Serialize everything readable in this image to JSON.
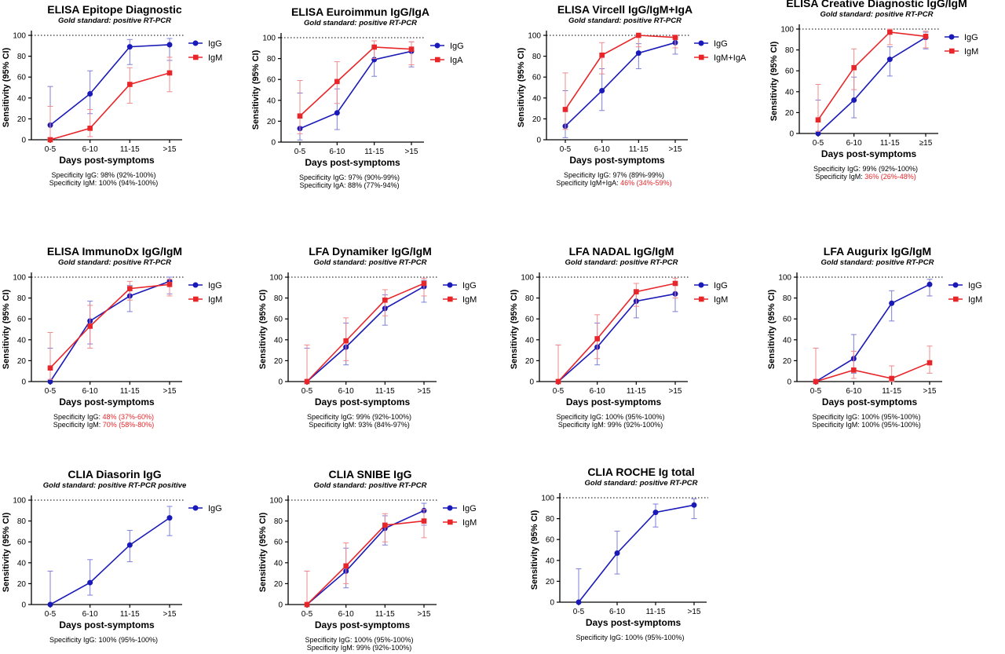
{
  "colors": {
    "IgG": "#1a1ab8",
    "other": "#e8262a",
    "red_text": "#e8262a",
    "text": "#000000"
  },
  "common": {
    "xlabel": "Days post-symptoms",
    "ylabel": "Sensitivity (95% CI)",
    "categories": [
      "0-5",
      "6-10",
      "11-15",
      ">15"
    ],
    "yticks": [
      "0",
      "20",
      "40",
      "60",
      "80",
      "100"
    ]
  },
  "chart_data": [
    {
      "type": "line",
      "title": "ELISA Epitope Diagnostic",
      "subtitle": "Gold standard: positive RT-PCR",
      "categories": [
        "0-5",
        "6-10",
        "11-15",
        ">15"
      ],
      "ylim": [
        0,
        100
      ],
      "reference_line": 100,
      "legend": "right",
      "series": [
        {
          "name": "IgG",
          "color": "#1a1ab8",
          "marker": "circle",
          "values": [
            14,
            44,
            89,
            91
          ],
          "ci": [
            [
              2,
              51
            ],
            [
              25,
              66
            ],
            [
              72,
              96
            ],
            [
              76,
              97
            ]
          ]
        },
        {
          "name": "IgM",
          "color": "#e8262a",
          "marker": "square",
          "values": [
            0,
            11,
            53,
            64
          ],
          "ci": [
            [
              0,
              32
            ],
            [
              3,
              29
            ],
            [
              35,
              69
            ],
            [
              46,
              79
            ]
          ]
        }
      ],
      "specificity": [
        {
          "label": "Specificity IgG: ",
          "value": "98% (92%-100%)",
          "highlight": false
        },
        {
          "label": "Specificity IgM: ",
          "value": "100% (94%-100%)",
          "highlight": false
        }
      ]
    },
    {
      "type": "line",
      "title": "ELISA Euroimmun IgG/IgA",
      "subtitle": "Gold standard: positive RT-PCR",
      "categories": [
        "0-5",
        "6-10",
        "11-15",
        ">15"
      ],
      "ylim": [
        0,
        100
      ],
      "reference_line": 100,
      "legend": "right",
      "series": [
        {
          "name": "IgG",
          "color": "#1a1ab8",
          "marker": "circle",
          "values": [
            13,
            28,
            79,
            87
          ],
          "ci": [
            [
              2,
              47
            ],
            [
              12,
              51
            ],
            [
              63,
              91
            ],
            [
              72,
              96
            ]
          ]
        },
        {
          "name": "IgA",
          "color": "#e8262a",
          "marker": "square",
          "values": [
            25,
            58,
            91,
            89
          ],
          "ci": [
            [
              8,
              59
            ],
            [
              37,
              77
            ],
            [
              80,
              97
            ],
            [
              74,
              96
            ]
          ]
        }
      ],
      "specificity": [
        {
          "label": "Specificity IgG: ",
          "value": "97% (90%-99%)",
          "highlight": false
        },
        {
          "label": "Specificity IgA: ",
          "value": "88% (77%-94%)",
          "highlight": false
        }
      ]
    },
    {
      "type": "line",
      "title": "ELISA Vircell IgG/IgM+IgA",
      "subtitle": "Gold standard: positive RT-PCR",
      "categories": [
        "0-5",
        "6-10",
        "11-15",
        ">15"
      ],
      "ylim": [
        0,
        100
      ],
      "reference_line": 100,
      "legend": "right",
      "series": [
        {
          "name": "IgG",
          "color": "#1a1ab8",
          "marker": "circle",
          "values": [
            13,
            47,
            83,
            93
          ],
          "ci": [
            [
              2,
              47
            ],
            [
              28,
              68
            ],
            [
              68,
              92
            ],
            [
              82,
              98
            ]
          ]
        },
        {
          "name": "IgM+IgA",
          "color": "#e8262a",
          "marker": "square",
          "values": [
            29,
            81,
            100,
            98
          ],
          "ci": [
            [
              10,
              64
            ],
            [
              63,
              93
            ],
            [
              89,
              100
            ],
            [
              88,
              100
            ]
          ]
        }
      ],
      "specificity": [
        {
          "label": "Specificity IgG: ",
          "value": "97% (89%-99%)",
          "highlight": false
        },
        {
          "label": "Specificity IgM+IgA: ",
          "value": "46% (34%-59%)",
          "highlight": true
        }
      ]
    },
    {
      "type": "line",
      "title": "ELISA Creative Diagnostic IgG/IgM",
      "subtitle": "Gold standard: positive RT-PCR",
      "categories": [
        "0-5",
        "6-10",
        "11-15",
        "≥15"
      ],
      "ylim": [
        0,
        100
      ],
      "reference_line": 100,
      "legend": "right",
      "series": [
        {
          "name": "IgG",
          "color": "#1a1ab8",
          "marker": "circle",
          "values": [
            0,
            32,
            71,
            92
          ],
          "ci": [
            [
              0,
              32
            ],
            [
              15,
              54
            ],
            [
              55,
              83
            ],
            [
              81,
              97
            ]
          ]
        },
        {
          "name": "IgM",
          "color": "#e8262a",
          "marker": "square",
          "values": [
            13,
            63,
            97,
            93
          ],
          "ci": [
            [
              2,
              47
            ],
            [
              42,
              81
            ],
            [
              85,
              100
            ],
            [
              82,
              98
            ]
          ]
        }
      ],
      "specificity": [
        {
          "label": "Specificity IgG: ",
          "value": "99% (92%-100%)",
          "highlight": false
        },
        {
          "label": "Specificity IgM: ",
          "value": "36% (26%-48%)",
          "highlight": true
        }
      ]
    },
    {
      "type": "line",
      "title": "ELISA ImmunoDx IgG/IgM",
      "subtitle": "Gold standard: positive RT-PCR",
      "categories": [
        "0-5",
        "6-10",
        "11-15",
        ">15"
      ],
      "ylim": [
        0,
        100
      ],
      "reference_line": 100,
      "legend": "right",
      "series": [
        {
          "name": "IgG",
          "color": "#1a1ab8",
          "marker": "circle",
          "values": [
            0,
            58,
            82,
            96
          ],
          "ci": [
            [
              0,
              32
            ],
            [
              36,
              77
            ],
            [
              67,
              92
            ],
            [
              84,
              100
            ]
          ]
        },
        {
          "name": "IgM",
          "color": "#e8262a",
          "marker": "square",
          "values": [
            13,
            53,
            89,
            93
          ],
          "ci": [
            [
              2,
              47
            ],
            [
              32,
              73
            ],
            [
              78,
              96
            ],
            [
              82,
              98
            ]
          ]
        }
      ],
      "specificity": [
        {
          "label": "Specificity IgG: ",
          "value": "48% (37%-60%)",
          "highlight": true
        },
        {
          "label": "Specificity IgM: ",
          "value": "70% (58%-80%)",
          "highlight": true
        }
      ]
    },
    {
      "type": "line",
      "title": "LFA Dynamiker IgG/IgM",
      "subtitle": "Gold standard: positive RT-PCR",
      "categories": [
        "0-5",
        "6-10",
        "11-15",
        ">15"
      ],
      "ylim": [
        0,
        100
      ],
      "reference_line": 100,
      "legend": "right",
      "series": [
        {
          "name": "IgG",
          "color": "#1a1ab8",
          "marker": "circle",
          "values": [
            0,
            33,
            70,
            91
          ],
          "ci": [
            [
              0,
              32
            ],
            [
              16,
              56
            ],
            [
              54,
              83
            ],
            [
              76,
              97
            ]
          ]
        },
        {
          "name": "IgM",
          "color": "#e8262a",
          "marker": "square",
          "values": [
            0,
            39,
            78,
            94
          ],
          "ci": [
            [
              0,
              35
            ],
            [
              20,
              61
            ],
            [
              63,
              88
            ],
            [
              82,
              99
            ]
          ]
        }
      ],
      "specificity": [
        {
          "label": "Specificity IgG: ",
          "value": "99% (92%-100%)",
          "highlight": false
        },
        {
          "label": "Specificity IgM: ",
          "value": "93% (84%-97%)",
          "highlight": false
        }
      ]
    },
    {
      "type": "line",
      "title": "LFA NADAL IgG/IgM",
      "subtitle": "Gold standard: positive RT-PCR",
      "categories": [
        "0-5",
        "6-10",
        "11-15",
        ">15"
      ],
      "ylim": [
        0,
        100
      ],
      "reference_line": 100,
      "legend": "right",
      "series": [
        {
          "name": "IgG",
          "color": "#1a1ab8",
          "marker": "circle",
          "values": [
            0,
            33,
            77,
            84
          ],
          "ci": [
            [
              0,
              35
            ],
            [
              16,
              56
            ],
            [
              61,
              88
            ],
            [
              67,
              93
            ]
          ]
        },
        {
          "name": "IgM",
          "color": "#e8262a",
          "marker": "square",
          "values": [
            0,
            41,
            86,
            94
          ],
          "ci": [
            [
              0,
              35
            ],
            [
              22,
              64
            ],
            [
              72,
              94
            ],
            [
              80,
              99
            ]
          ]
        }
      ],
      "specificity": [
        {
          "label": "Specificity IgG: ",
          "value": "100% (95%-100%)",
          "highlight": false
        },
        {
          "label": "Specificity IgM: ",
          "value": "99% (92%-100%)",
          "highlight": false
        }
      ]
    },
    {
      "type": "line",
      "title": "LFA Augurix IgG/IgM",
      "subtitle": "Gold standard: positive RT-PCR",
      "categories": [
        "0-5",
        "6-10",
        "11-15",
        ">15"
      ],
      "ylim": [
        0,
        100
      ],
      "reference_line": 100,
      "legend": "right",
      "series": [
        {
          "name": "IgG",
          "color": "#1a1ab8",
          "marker": "circle",
          "values": [
            0,
            22,
            75,
            93
          ],
          "ci": [
            [
              0,
              32
            ],
            [
              8,
              45
            ],
            [
              58,
              87
            ],
            [
              82,
              98
            ]
          ]
        },
        {
          "name": "IgM",
          "color": "#e8262a",
          "marker": "square",
          "values": [
            0,
            11,
            3,
            18
          ],
          "ci": [
            [
              0,
              32
            ],
            [
              3,
              29
            ],
            [
              0,
              15
            ],
            [
              8,
              34
            ]
          ]
        }
      ],
      "specificity": [
        {
          "label": "Specificity IgG: ",
          "value": "100% (95%-100%)",
          "highlight": false
        },
        {
          "label": "Specificity IgM: ",
          "value": "100% (95%-100%)",
          "highlight": false
        }
      ]
    },
    {
      "type": "line",
      "title": "CLIA Diasorin IgG",
      "subtitle": "Gold standard: positive RT-PCR positive",
      "categories": [
        "0-5",
        "6-10",
        "11-15",
        ">15"
      ],
      "ylim": [
        0,
        100
      ],
      "reference_line": 100,
      "legend": "right",
      "series": [
        {
          "name": "IgG",
          "color": "#1a1ab8",
          "marker": "circle",
          "values": [
            0,
            21,
            57,
            83
          ],
          "ci": [
            [
              0,
              32
            ],
            [
              9,
              43
            ],
            [
              41,
              71
            ],
            [
              66,
              94
            ]
          ]
        }
      ],
      "specificity": [
        {
          "label": "Specificity IgG: ",
          "value": "100% (95%-100%)",
          "highlight": false
        }
      ]
    },
    {
      "type": "line",
      "title": "CLIA SNIBE IgG",
      "subtitle": "Gold standard: positive RT-PCR",
      "categories": [
        "0-5",
        "6-10",
        "11-15",
        ">15"
      ],
      "ylim": [
        0,
        100
      ],
      "reference_line": 100,
      "legend": "right",
      "series": [
        {
          "name": "IgG",
          "color": "#1a1ab8",
          "marker": "circle",
          "values": [
            0,
            32,
            73,
            90
          ],
          "ci": [
            [
              0,
              32
            ],
            [
              16,
              54
            ],
            [
              57,
              85
            ],
            [
              76,
              97
            ]
          ]
        },
        {
          "name": "IgM",
          "color": "#e8262a",
          "marker": "square",
          "values": [
            0,
            37,
            76,
            80
          ],
          "ci": [
            [
              0,
              32
            ],
            [
              20,
              59
            ],
            [
              60,
              87
            ],
            [
              64,
              91
            ]
          ]
        }
      ],
      "specificity": [
        {
          "label": "Specificity IgG: ",
          "value": "100% (95%-100%)",
          "highlight": false
        },
        {
          "label": "Specificity IgM: ",
          "value": "99% (92%-100%)",
          "highlight": false
        }
      ]
    },
    {
      "type": "line",
      "title": "CLIA ROCHE Ig total",
      "subtitle": "Gold standard: positive RT-PCR",
      "categories": [
        "0-5",
        "6-10",
        "11-15",
        ">15"
      ],
      "ylim": [
        0,
        100
      ],
      "reference_line": 100,
      "legend": "none",
      "series": [
        {
          "name": "",
          "color": "#1a1ab8",
          "marker": "circle",
          "values": [
            0,
            47,
            86,
            93
          ],
          "ci": [
            [
              0,
              32
            ],
            [
              27,
              68
            ],
            [
              72,
              94
            ],
            [
              80,
              99
            ]
          ]
        }
      ],
      "specificity": [
        {
          "label": "Specificity IgG: ",
          "value": "100% (95%-100%)",
          "highlight": false
        }
      ]
    }
  ]
}
